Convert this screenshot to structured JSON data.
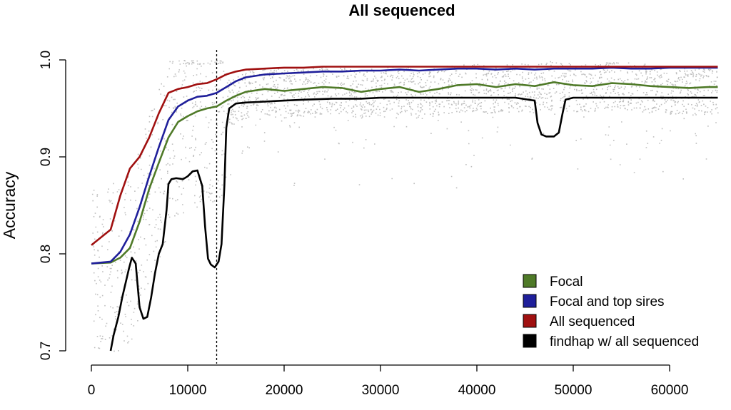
{
  "chart_data": {
    "type": "line",
    "title": "All sequenced",
    "xlabel": "",
    "ylabel": "Accuracy",
    "xlim": [
      0,
      65000
    ],
    "ylim": [
      0.7,
      1.0
    ],
    "xticks": [
      "0",
      "10000",
      "20000",
      "30000",
      "40000",
      "50000",
      "60000"
    ],
    "yticks": [
      "0.7",
      "0.8",
      "0.9",
      "1.0"
    ],
    "reference_line_x": 13000,
    "legend_position": "bottom-right",
    "scatter_color": "#bfbfbf",
    "series": [
      {
        "name": "Focal",
        "color": "#4f7a28",
        "x": [
          0,
          2000,
          3000,
          4000,
          5000,
          6000,
          7000,
          8000,
          9000,
          10000,
          11000,
          12000,
          13000,
          14000,
          15000,
          16000,
          18000,
          20000,
          22000,
          24000,
          26000,
          28000,
          30000,
          32000,
          34000,
          36000,
          38000,
          40000,
          42000,
          44000,
          46000,
          48000,
          50000,
          52000,
          54000,
          56000,
          58000,
          60000,
          62000,
          64000,
          65000
        ],
        "y": [
          0.79,
          0.791,
          0.796,
          0.806,
          0.833,
          0.867,
          0.894,
          0.92,
          0.936,
          0.942,
          0.947,
          0.95,
          0.952,
          0.958,
          0.963,
          0.967,
          0.97,
          0.968,
          0.97,
          0.972,
          0.971,
          0.967,
          0.97,
          0.972,
          0.967,
          0.97,
          0.974,
          0.975,
          0.972,
          0.975,
          0.973,
          0.977,
          0.974,
          0.973,
          0.976,
          0.975,
          0.973,
          0.972,
          0.971,
          0.972,
          0.972
        ]
      },
      {
        "name": "Focal and top sires",
        "color": "#1f1f9a",
        "x": [
          0,
          2000,
          3000,
          4000,
          5000,
          6000,
          7000,
          8000,
          9000,
          10000,
          11000,
          12000,
          13000,
          14000,
          15000,
          16000,
          18000,
          20000,
          22000,
          24000,
          26000,
          28000,
          30000,
          32000,
          34000,
          36000,
          38000,
          40000,
          42000,
          44000,
          46000,
          48000,
          50000,
          52000,
          54000,
          56000,
          58000,
          60000,
          62000,
          64000,
          65000
        ],
        "y": [
          0.79,
          0.792,
          0.802,
          0.82,
          0.848,
          0.88,
          0.91,
          0.938,
          0.952,
          0.958,
          0.962,
          0.963,
          0.966,
          0.972,
          0.978,
          0.982,
          0.985,
          0.986,
          0.987,
          0.988,
          0.988,
          0.989,
          0.989,
          0.99,
          0.989,
          0.99,
          0.991,
          0.991,
          0.99,
          0.991,
          0.99,
          0.991,
          0.991,
          0.991,
          0.992,
          0.991,
          0.991,
          0.992,
          0.992,
          0.992,
          0.992
        ]
      },
      {
        "name": "All sequenced",
        "color": "#a01010",
        "x": [
          0,
          2000,
          3000,
          4000,
          5000,
          6000,
          7000,
          8000,
          9000,
          10000,
          11000,
          12000,
          13000,
          14000,
          15000,
          16000,
          18000,
          20000,
          22000,
          24000,
          26000,
          28000,
          30000,
          32000,
          34000,
          36000,
          38000,
          40000,
          42000,
          44000,
          46000,
          48000,
          50000,
          52000,
          54000,
          56000,
          58000,
          60000,
          62000,
          64000,
          65000
        ],
        "y": [
          0.809,
          0.825,
          0.86,
          0.888,
          0.9,
          0.92,
          0.945,
          0.966,
          0.97,
          0.972,
          0.975,
          0.976,
          0.98,
          0.985,
          0.988,
          0.99,
          0.991,
          0.992,
          0.992,
          0.993,
          0.993,
          0.993,
          0.993,
          0.993,
          0.993,
          0.993,
          0.993,
          0.993,
          0.993,
          0.993,
          0.993,
          0.993,
          0.993,
          0.993,
          0.993,
          0.993,
          0.993,
          0.993,
          0.993,
          0.993,
          0.993
        ]
      },
      {
        "name": "findhap w/ all sequenced",
        "color": "#000000",
        "x": [
          2000,
          2300,
          2800,
          3200,
          3600,
          3900,
          4200,
          4600,
          5000,
          5400,
          5800,
          6200,
          6600,
          7000,
          7400,
          7800,
          8000,
          8300,
          8800,
          9500,
          10000,
          10500,
          11000,
          11500,
          11800,
          12100,
          12400,
          12800,
          13200,
          13500,
          13800,
          14000,
          14300,
          15000,
          16000,
          18000,
          20000,
          22000,
          25000,
          28000,
          30000,
          33000,
          36000,
          40000,
          44000,
          46000,
          46300,
          46700,
          47200,
          48000,
          48500,
          48900,
          49200,
          50000,
          55000,
          60000,
          65000
        ],
        "y": [
          0.7,
          0.716,
          0.735,
          0.755,
          0.772,
          0.785,
          0.796,
          0.79,
          0.745,
          0.733,
          0.735,
          0.755,
          0.78,
          0.8,
          0.81,
          0.845,
          0.872,
          0.877,
          0.878,
          0.877,
          0.88,
          0.885,
          0.886,
          0.87,
          0.828,
          0.795,
          0.789,
          0.786,
          0.792,
          0.81,
          0.87,
          0.93,
          0.95,
          0.955,
          0.956,
          0.957,
          0.958,
          0.959,
          0.96,
          0.96,
          0.961,
          0.961,
          0.961,
          0.961,
          0.961,
          0.958,
          0.935,
          0.923,
          0.921,
          0.921,
          0.925,
          0.945,
          0.959,
          0.961,
          0.961,
          0.961,
          0.961
        ]
      }
    ]
  }
}
